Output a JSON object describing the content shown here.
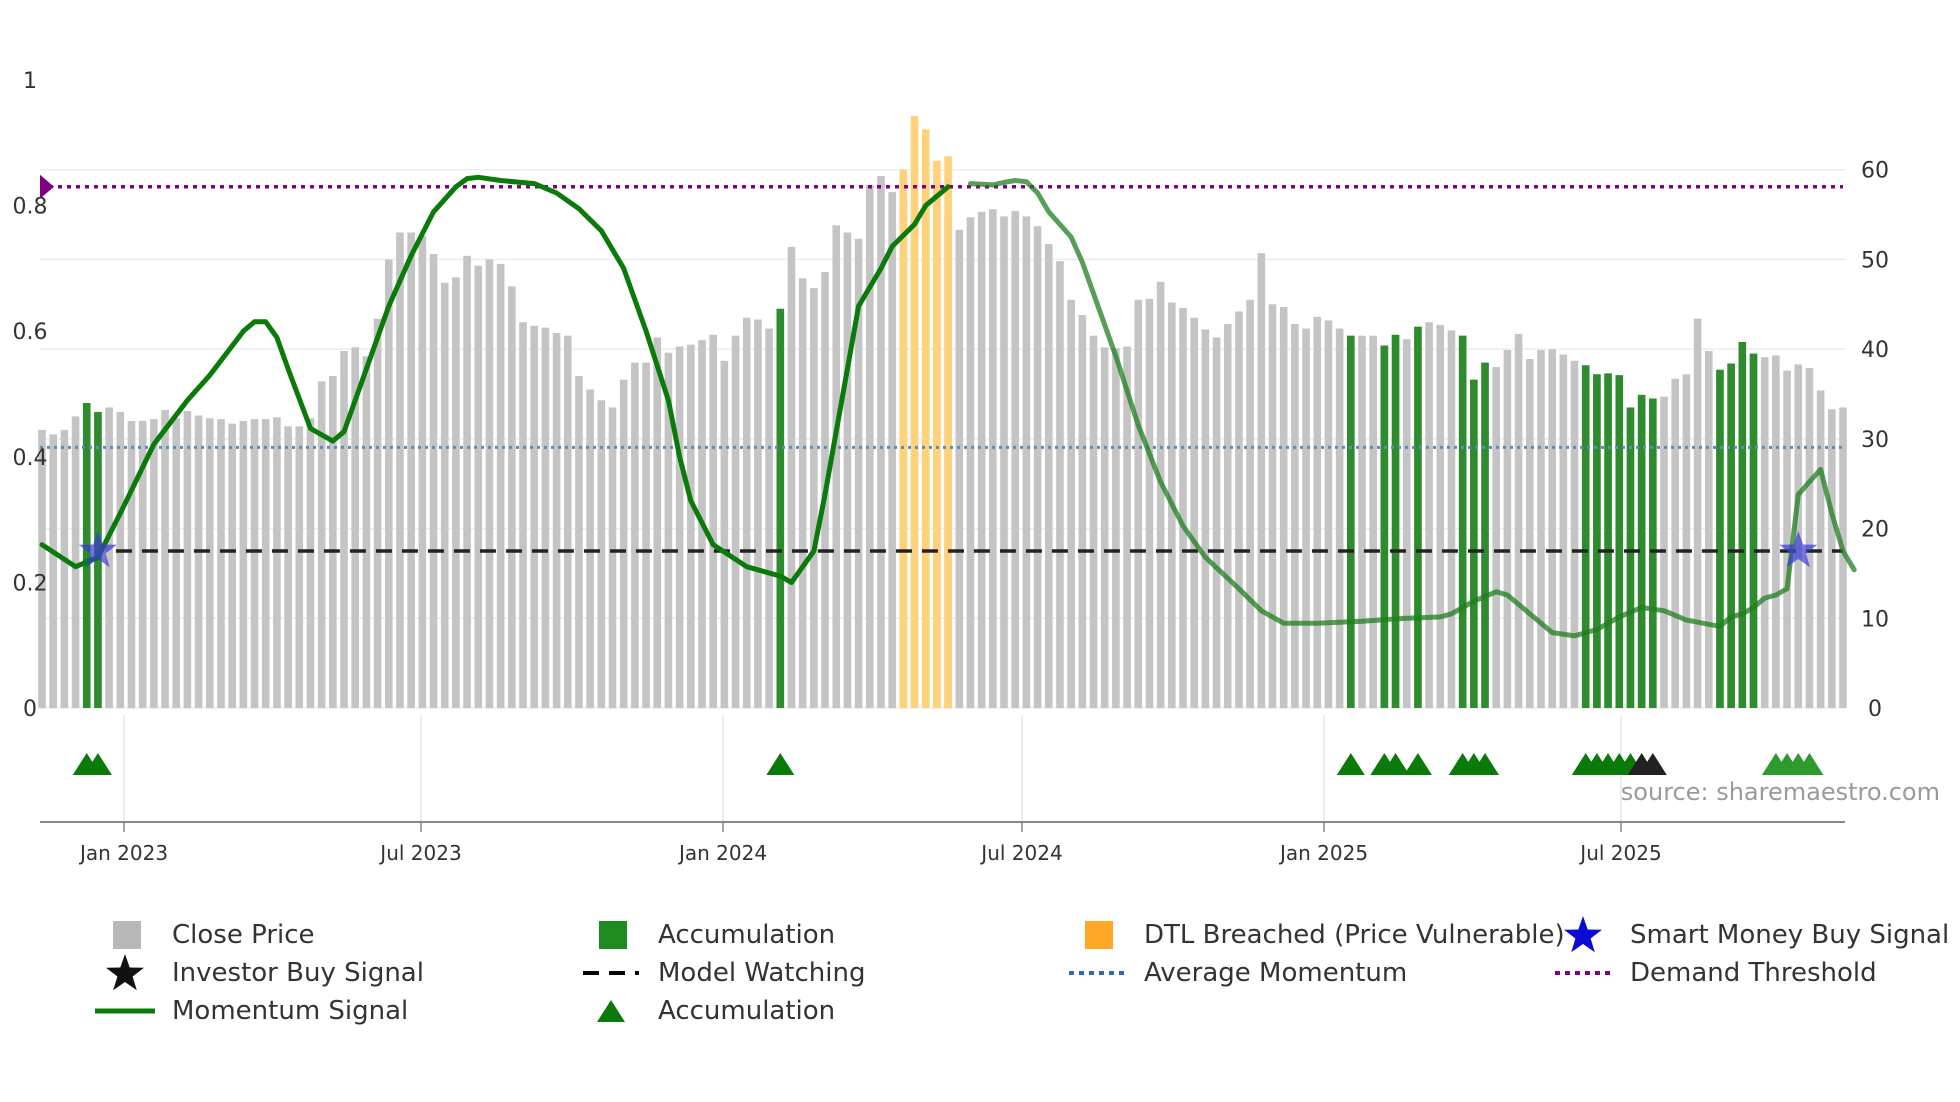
{
  "chart_data": {
    "type": "bar",
    "title": "",
    "source_text": "source: sharemaestro.com",
    "left_axis": {
      "ticks": [
        "0",
        "0.2",
        "0.4",
        "0.6",
        "0.8",
        "1"
      ],
      "range": [
        0,
        1
      ]
    },
    "right_axis": {
      "ticks": [
        "0",
        "10",
        "20",
        "30",
        "40",
        "50",
        "60"
      ],
      "range": [
        0,
        70
      ]
    },
    "date_ticks": [
      "Jan 2023",
      "Jul 2023",
      "Jan 2024",
      "Jul 2024",
      "Jan 2025",
      "Jul 2025"
    ],
    "close_price_weekly": [
      31,
      30.5,
      31,
      32.5,
      34,
      33,
      33.5,
      33,
      32,
      32,
      32.2,
      33.2,
      32.3,
      33.1,
      32.6,
      32.3,
      32.2,
      31.7,
      32,
      32.2,
      32.2,
      32.4,
      31.4,
      31.4,
      32.3,
      36.4,
      37,
      39.8,
      40.2,
      39.2,
      43.4,
      50,
      53,
      53,
      52.6,
      50.6,
      47.4,
      48,
      50.4,
      49.3,
      50,
      49.5,
      47,
      43,
      42.6,
      42.4,
      41.8,
      41.5,
      37,
      35.5,
      34.3,
      33.5,
      36.6,
      38.5,
      38.5,
      41.3,
      39.6,
      40.3,
      40.5,
      41,
      41.6,
      38.7,
      41.5,
      43.5,
      43.3,
      42.3,
      44.5,
      51.4,
      47.9,
      46.8,
      48.6,
      53.8,
      53,
      52.3,
      58.3,
      59.3,
      57.5,
      56.7,
      55.2,
      57.5,
      57.5,
      54.8,
      53.3,
      54.7,
      55.3,
      55.6,
      54.8,
      55.4,
      54.8,
      53.7,
      51.7,
      49.8,
      45.5,
      43.8,
      41.5,
      40.2,
      40.1,
      40.3,
      45.5,
      45.6,
      47.5,
      45.2,
      44.6,
      43.5,
      42.2,
      41.3,
      42.8,
      44.2,
      45.5,
      50.7,
      45,
      44.7,
      42.8,
      42.3,
      43.6,
      43.2,
      42.3,
      41.5,
      41.5,
      41.5,
      40.4,
      41.6,
      41.1,
      42.5,
      43,
      42.7,
      42.1,
      41.5,
      36.6,
      38.5,
      38,
      39.9,
      41.7,
      38.9,
      39.9,
      40,
      39.4,
      38.7,
      38.2,
      37.2,
      37.3,
      37.1,
      33.5,
      34.9,
      34.5,
      34.7,
      36.7,
      37.2,
      43.4,
      39.8,
      37.7,
      38.4,
      40.8,
      39.5,
      39.1,
      39.3,
      37.6,
      38.3,
      37.9,
      35.4,
      33.3,
      33.5
    ],
    "accumulation_weeks": [
      4,
      5,
      66,
      117,
      120,
      121,
      123,
      127,
      128,
      129,
      138,
      139,
      140,
      141,
      142,
      143,
      144,
      150,
      151,
      152,
      153
    ],
    "dtl_breached": [
      {
        "week": 77,
        "value": 60
      },
      {
        "week": 78,
        "value": 66
      },
      {
        "week": 79,
        "value": 64.5
      },
      {
        "week": 80,
        "value": 61
      },
      {
        "week": 81,
        "value": 61.5
      }
    ],
    "momentum_signal": [
      [
        0,
        0.26
      ],
      [
        3,
        0.225
      ],
      [
        5,
        0.24
      ],
      [
        7,
        0.31
      ],
      [
        10,
        0.42
      ],
      [
        13,
        0.49
      ],
      [
        15,
        0.53
      ],
      [
        18,
        0.6
      ],
      [
        19,
        0.615
      ],
      [
        20,
        0.615
      ],
      [
        21,
        0.59
      ],
      [
        22,
        0.54
      ],
      [
        24,
        0.445
      ],
      [
        26,
        0.425
      ],
      [
        27,
        0.44
      ],
      [
        29,
        0.54
      ],
      [
        31,
        0.64
      ],
      [
        33,
        0.72
      ],
      [
        35,
        0.79
      ],
      [
        37,
        0.83
      ],
      [
        38,
        0.843
      ],
      [
        39,
        0.845
      ],
      [
        41,
        0.84
      ],
      [
        44,
        0.835
      ],
      [
        46,
        0.82
      ],
      [
        48,
        0.795
      ],
      [
        50,
        0.76
      ],
      [
        52,
        0.7
      ],
      [
        54,
        0.6
      ],
      [
        56,
        0.49
      ],
      [
        57,
        0.4
      ],
      [
        58,
        0.33
      ],
      [
        60,
        0.26
      ],
      [
        63,
        0.225
      ],
      [
        66,
        0.21
      ],
      [
        67,
        0.2
      ],
      [
        69,
        0.25
      ],
      [
        70,
        0.34
      ],
      [
        71,
        0.44
      ],
      [
        72,
        0.54
      ],
      [
        73,
        0.64
      ],
      [
        75,
        0.7
      ],
      [
        76,
        0.735
      ],
      [
        78,
        0.77
      ],
      [
        79,
        0.8
      ],
      [
        81,
        0.83
      ],
      [
        83,
        0.835
      ],
      [
        85,
        0.833
      ],
      [
        86,
        0.837
      ],
      [
        87,
        0.84
      ],
      [
        88,
        0.838
      ],
      [
        89,
        0.82
      ],
      [
        90,
        0.79
      ],
      [
        92,
        0.75
      ],
      [
        93,
        0.71
      ],
      [
        94,
        0.66
      ],
      [
        96,
        0.56
      ],
      [
        98,
        0.45
      ],
      [
        100,
        0.36
      ],
      [
        102,
        0.29
      ],
      [
        104,
        0.24
      ],
      [
        107,
        0.19
      ],
      [
        109,
        0.155
      ],
      [
        111,
        0.135
      ],
      [
        114,
        0.135
      ],
      [
        118,
        0.138
      ],
      [
        122,
        0.143
      ],
      [
        125,
        0.145
      ],
      [
        126,
        0.15
      ],
      [
        128,
        0.17
      ],
      [
        130,
        0.185
      ],
      [
        131,
        0.18
      ],
      [
        133,
        0.15
      ],
      [
        135,
        0.12
      ],
      [
        137,
        0.115
      ],
      [
        139,
        0.125
      ],
      [
        141,
        0.145
      ],
      [
        143,
        0.16
      ],
      [
        145,
        0.155
      ],
      [
        147,
        0.14
      ],
      [
        150,
        0.13
      ],
      [
        151,
        0.145
      ],
      [
        152,
        0.15
      ],
      [
        153,
        0.16
      ],
      [
        154,
        0.175
      ],
      [
        155,
        0.18
      ],
      [
        156,
        0.19
      ],
      [
        157,
        0.34
      ],
      [
        158,
        0.36
      ],
      [
        159,
        0.38
      ],
      [
        160,
        0.31
      ],
      [
        161,
        0.25
      ],
      [
        162,
        0.22
      ]
    ],
    "average_momentum": 0.415,
    "demand_threshold": 0.83,
    "model_watching_level": 0.25,
    "smart_money_buy_weeks": [
      5,
      157
    ],
    "investor_buy_weeks": [
      143,
      144
    ],
    "accumulation_triangle_weeks": [
      4,
      5,
      66,
      117,
      120,
      121,
      123,
      127,
      128,
      129,
      138,
      139,
      140,
      141,
      142,
      155,
      156,
      157,
      158
    ],
    "investor_triangle_weeks": [
      143,
      144
    ],
    "legend": [
      {
        "label": "Close Price",
        "color": "#b8b8b8",
        "marker": "square"
      },
      {
        "label": "Accumulation",
        "color": "#1f8a1f",
        "marker": "square"
      },
      {
        "label": "DTL Breached (Price Vulnerable)",
        "color": "#ffa726",
        "marker": "square"
      },
      {
        "label": "Smart Money Buy Signal",
        "color": "#0b0bd6",
        "marker": "star"
      },
      {
        "label": "Investor Buy Signal",
        "color": "#111111",
        "marker": "star"
      },
      {
        "label": "Model Watching",
        "color": "#000000",
        "marker": "dash"
      },
      {
        "label": "Average Momentum",
        "color": "#2b6cb0",
        "marker": "dot"
      },
      {
        "label": "Demand Threshold",
        "color": "#800080",
        "marker": "dot"
      },
      {
        "label": "Momentum Signal",
        "color": "#0a7a0a",
        "marker": "line"
      },
      {
        "label": "Accumulation",
        "color": "#0a7a0a",
        "marker": "triangle"
      }
    ]
  }
}
